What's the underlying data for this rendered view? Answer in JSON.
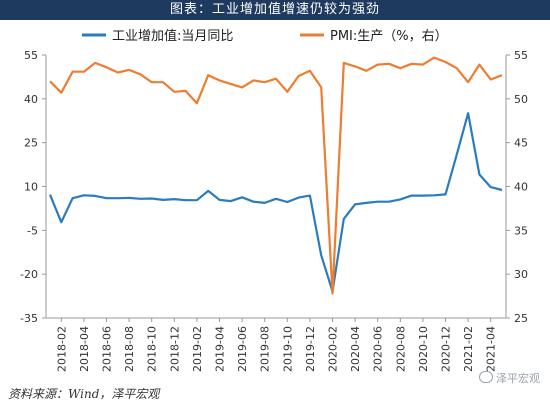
{
  "figure_title": "图表：工业增加值增速仍较为强劲",
  "source_note": "资料来源：Wind，泽平宏观",
  "watermark": "泽平宏观",
  "chart_data": {
    "type": "line",
    "dual_axis": true,
    "x": [
      "2018-01",
      "2018-02",
      "2018-03",
      "2018-04",
      "2018-05",
      "2018-06",
      "2018-07",
      "2018-08",
      "2018-09",
      "2018-10",
      "2018-11",
      "2018-12",
      "2019-01",
      "2019-02",
      "2019-03",
      "2019-04",
      "2019-05",
      "2019-06",
      "2019-07",
      "2019-08",
      "2019-09",
      "2019-10",
      "2019-11",
      "2019-12",
      "2020-01",
      "2020-02",
      "2020-03",
      "2020-04",
      "2020-05",
      "2020-06",
      "2020-07",
      "2020-08",
      "2020-09",
      "2020-10",
      "2020-11",
      "2020-12",
      "2021-01",
      "2021-02",
      "2021-03",
      "2021-04",
      "2021-05"
    ],
    "tick_labels": [
      "2018-02",
      "2018-04",
      "2018-06",
      "2018-08",
      "2018-10",
      "2018-12",
      "2019-02",
      "2019-04",
      "2019-06",
      "2019-08",
      "2019-10",
      "2019-12",
      "2020-02",
      "2020-04",
      "2020-06",
      "2020-08",
      "2020-10",
      "2020-12",
      "2021-02",
      "2021-04"
    ],
    "series": [
      {
        "name": "工业增加值:当月同比",
        "axis": "left",
        "color": "#2b7bc0",
        "values": [
          7.2,
          -2.2,
          6.0,
          7.0,
          6.8,
          6.0,
          6.0,
          6.1,
          5.8,
          5.9,
          5.4,
          5.7,
          5.3,
          5.3,
          8.5,
          5.4,
          5.0,
          6.3,
          4.8,
          4.4,
          5.8,
          4.7,
          6.2,
          6.9,
          -13.5,
          -25.9,
          -1.1,
          3.9,
          4.4,
          4.8,
          4.8,
          5.6,
          6.9,
          6.9,
          7.0,
          7.3,
          21.0,
          35.1,
          14.1,
          9.8,
          8.8
        ]
      },
      {
        "name": "PMI:生产（%，右）",
        "axis": "right",
        "color": "#ed7d31",
        "values": [
          52.0,
          50.7,
          53.1,
          53.1,
          54.1,
          53.6,
          53.0,
          53.3,
          52.8,
          51.9,
          51.9,
          50.8,
          50.9,
          49.5,
          52.7,
          52.1,
          51.7,
          51.3,
          52.1,
          51.9,
          52.3,
          50.8,
          52.6,
          53.2,
          51.3,
          27.8,
          54.1,
          53.7,
          53.2,
          53.9,
          54.0,
          53.5,
          54.0,
          53.9,
          54.7,
          54.2,
          53.5,
          51.9,
          53.9,
          52.2,
          52.7
        ]
      }
    ],
    "y_left": {
      "ticks": [
        -35,
        -20,
        -5,
        10,
        25,
        40,
        55
      ],
      "lim": [
        -35,
        55
      ]
    },
    "y_right": {
      "ticks": [
        25,
        30,
        35,
        40,
        45,
        50,
        55
      ],
      "lim": [
        25,
        55
      ]
    },
    "legend_position": "top",
    "grid": false
  }
}
